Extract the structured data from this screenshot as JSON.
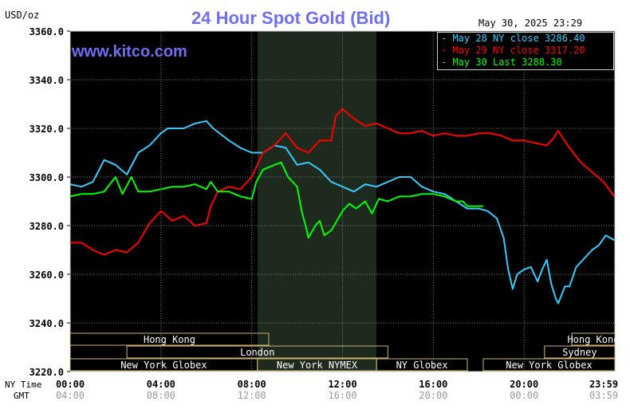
{
  "header": {
    "title": "24 Hour Spot Gold (Bid)",
    "units": "USD/oz",
    "timestamp": "May 30, 2025 23:29",
    "site": "www.kitco.com"
  },
  "legend": [
    {
      "text": "May 28 NY close 3286.40",
      "color": "#33ccff"
    },
    {
      "text": "May 29 NY close 3317.20",
      "color": "#ff0000"
    },
    {
      "text": "May 30 Last 3288.30",
      "color": "#00ff00"
    }
  ],
  "axes": {
    "row1_label": "NY Time",
    "row2_label": "GMT",
    "ny_ticks": [
      "00:00",
      "04:00",
      "08:00",
      "12:00",
      "16:00",
      "20:00",
      "23:59"
    ],
    "gmt_ticks": [
      "04:00",
      "08:00",
      "12:00",
      "16:00",
      "20:00",
      "00:00",
      "03:59"
    ],
    "y_ticks": [
      "3360.0",
      "3340.0",
      "3320.0",
      "3300.0",
      "3280.0",
      "3260.0",
      "3240.0",
      "3220.0"
    ]
  },
  "sessions": [
    {
      "label": "Hong Kong",
      "start": 0,
      "end": 8.75
    },
    {
      "label": "Hong Kong",
      "start": 22.1,
      "end": 24
    },
    {
      "label": "London",
      "start": 2.5,
      "end": 14.0
    },
    {
      "label": "Sydney",
      "start": 20.9,
      "end": 24
    },
    {
      "label": "New York Globex",
      "start": 0,
      "end": 8.25
    },
    {
      "label": "New York NYMEX",
      "start": 8.25,
      "end": 13.5
    },
    {
      "label": "NY Globex",
      "start": 13.5,
      "end": 17.5
    },
    {
      "label": "New York Globex",
      "start": 18.2,
      "end": 24
    }
  ],
  "colors": {
    "background": "#000000",
    "grid": "#808080",
    "nymex_shade": "#1f2a1f",
    "session_border": "#c8b46e",
    "session_text": "#ffffff"
  },
  "chart_data": {
    "type": "line",
    "title": "24 Hour Spot Gold (Bid)",
    "ylabel": "USD/oz",
    "xlabel": "NY Time",
    "xlim": [
      0,
      24
    ],
    "ylim": [
      3220,
      3360
    ],
    "grid": true,
    "legend_position": "top-right",
    "series": [
      {
        "name": "May 28 NY close 3286.40",
        "color": "#33ccff",
        "points": [
          [
            0,
            3297
          ],
          [
            0.5,
            3296
          ],
          [
            1,
            3298
          ],
          [
            1.5,
            3307
          ],
          [
            2,
            3305
          ],
          [
            2.5,
            3301
          ],
          [
            3,
            3310
          ],
          [
            3.5,
            3313
          ],
          [
            4,
            3318
          ],
          [
            4.3,
            3320
          ],
          [
            5,
            3320
          ],
          [
            5.5,
            3322
          ],
          [
            6,
            3323
          ],
          [
            6.3,
            3320
          ],
          [
            7,
            3315
          ],
          [
            7.5,
            3312
          ],
          [
            8,
            3310
          ],
          [
            8.5,
            3310
          ],
          [
            9,
            3313
          ],
          [
            9.5,
            3312
          ],
          [
            10,
            3305
          ],
          [
            10.5,
            3306
          ],
          [
            11,
            3303
          ],
          [
            11.5,
            3298
          ],
          [
            12,
            3296
          ],
          [
            12.5,
            3294
          ],
          [
            13,
            3297
          ],
          [
            13.5,
            3296
          ],
          [
            14,
            3298
          ],
          [
            14.5,
            3300
          ],
          [
            15,
            3300
          ],
          [
            15.5,
            3296
          ],
          [
            16,
            3294
          ],
          [
            16.5,
            3293
          ],
          [
            17,
            3290
          ],
          [
            17.5,
            3287
          ],
          [
            18,
            3287
          ],
          [
            18.4,
            3286
          ],
          [
            18.8,
            3283
          ],
          [
            19.1,
            3275
          ],
          [
            19.3,
            3262
          ],
          [
            19.5,
            3254
          ],
          [
            19.7,
            3260
          ],
          [
            20,
            3262
          ],
          [
            20.3,
            3263
          ],
          [
            20.6,
            3257
          ],
          [
            20.8,
            3262
          ],
          [
            21,
            3266
          ],
          [
            21.2,
            3256
          ],
          [
            21.4,
            3250
          ],
          [
            21.5,
            3248
          ],
          [
            21.8,
            3255
          ],
          [
            22,
            3255
          ],
          [
            22.3,
            3263
          ],
          [
            22.6,
            3266
          ],
          [
            23,
            3270
          ],
          [
            23.3,
            3272
          ],
          [
            23.6,
            3276
          ],
          [
            23.98,
            3274
          ]
        ]
      },
      {
        "name": "May 29 NY close 3317.20",
        "color": "#ff0000",
        "points": [
          [
            0,
            3273
          ],
          [
            0.5,
            3273
          ],
          [
            1,
            3270
          ],
          [
            1.5,
            3268
          ],
          [
            2,
            3270
          ],
          [
            2.5,
            3269
          ],
          [
            3,
            3273
          ],
          [
            3.5,
            3281
          ],
          [
            4,
            3286
          ],
          [
            4.5,
            3282
          ],
          [
            5,
            3284
          ],
          [
            5.5,
            3280
          ],
          [
            6,
            3281
          ],
          [
            6.2,
            3288
          ],
          [
            6.5,
            3294
          ],
          [
            7,
            3296
          ],
          [
            7.5,
            3295
          ],
          [
            8,
            3300
          ],
          [
            8.5,
            3310
          ],
          [
            9,
            3313
          ],
          [
            9.5,
            3318
          ],
          [
            10,
            3312
          ],
          [
            10.5,
            3310
          ],
          [
            11,
            3315
          ],
          [
            11.5,
            3315
          ],
          [
            11.7,
            3325
          ],
          [
            12,
            3328
          ],
          [
            12.5,
            3324
          ],
          [
            13,
            3321
          ],
          [
            13.5,
            3322
          ],
          [
            14,
            3320
          ],
          [
            14.5,
            3318
          ],
          [
            15,
            3318
          ],
          [
            15.5,
            3319
          ],
          [
            16,
            3317
          ],
          [
            16.5,
            3318
          ],
          [
            17,
            3317
          ],
          [
            17.5,
            3317
          ],
          [
            18,
            3318
          ],
          [
            18.5,
            3318
          ],
          [
            19,
            3317
          ],
          [
            19.5,
            3315
          ],
          [
            20,
            3315
          ],
          [
            20.5,
            3314
          ],
          [
            21,
            3313
          ],
          [
            21.3,
            3316
          ],
          [
            21.5,
            3319
          ],
          [
            22,
            3312
          ],
          [
            22.5,
            3306
          ],
          [
            23,
            3302
          ],
          [
            23.5,
            3298
          ],
          [
            23.98,
            3292
          ]
        ]
      },
      {
        "name": "May 30 Last 3288.30",
        "color": "#00ff00",
        "points": [
          [
            0,
            3292
          ],
          [
            0.5,
            3293
          ],
          [
            1,
            3293
          ],
          [
            1.5,
            3294
          ],
          [
            2,
            3300
          ],
          [
            2.3,
            3293
          ],
          [
            2.7,
            3300
          ],
          [
            3,
            3294
          ],
          [
            3.5,
            3294
          ],
          [
            4,
            3295
          ],
          [
            4.5,
            3296
          ],
          [
            5,
            3296
          ],
          [
            5.5,
            3297
          ],
          [
            6,
            3295
          ],
          [
            6.2,
            3298
          ],
          [
            6.5,
            3294
          ],
          [
            7,
            3294
          ],
          [
            7.5,
            3292
          ],
          [
            8,
            3291
          ],
          [
            8.2,
            3298
          ],
          [
            8.5,
            3303
          ],
          [
            9,
            3305
          ],
          [
            9.3,
            3306
          ],
          [
            9.6,
            3300
          ],
          [
            10,
            3296
          ],
          [
            10.2,
            3286
          ],
          [
            10.4,
            3279
          ],
          [
            10.5,
            3275
          ],
          [
            10.8,
            3280
          ],
          [
            11,
            3282
          ],
          [
            11.2,
            3276
          ],
          [
            11.5,
            3278
          ],
          [
            12,
            3286
          ],
          [
            12.3,
            3289
          ],
          [
            12.6,
            3287
          ],
          [
            13,
            3290
          ],
          [
            13.3,
            3285
          ],
          [
            13.6,
            3291
          ],
          [
            14,
            3290
          ],
          [
            14.5,
            3292
          ],
          [
            15,
            3292
          ],
          [
            15.5,
            3293
          ],
          [
            16,
            3293
          ],
          [
            16.5,
            3292
          ],
          [
            17,
            3290
          ],
          [
            17.3,
            3290
          ],
          [
            17.5,
            3288
          ],
          [
            18.2,
            3288
          ]
        ]
      }
    ]
  }
}
